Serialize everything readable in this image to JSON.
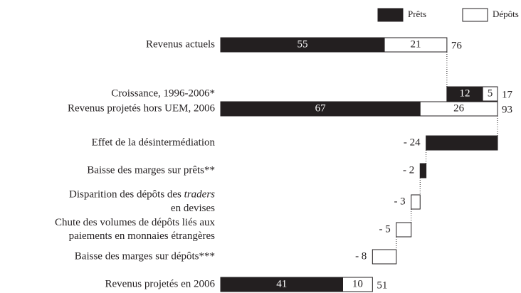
{
  "chart_data": {
    "type": "waterfall",
    "categories": [
      [
        "Revenus actuels"
      ],
      [
        "Croissance, 1996-2006*"
      ],
      [
        "Revenus projetés hors UEM, 2006"
      ],
      [
        "Effet de la désintermédiation"
      ],
      [
        "Baisse des marges sur prêts**"
      ],
      [
        [
          {
            "text": "Disparition des dépôts des "
          },
          {
            "text": "traders",
            "italic": true
          }
        ],
        "en devises"
      ],
      [
        "Chute des volumes de dépôts liés aux",
        "paiements en monnaies étrangères"
      ],
      [
        "Baisse des marges sur dépôts***"
      ],
      [
        "Revenus projetés en 2006"
      ]
    ],
    "measure": [
      "absolute",
      "relative",
      "absolute",
      "relative",
      "relative",
      "relative",
      "relative",
      "relative",
      "absolute"
    ],
    "series": [
      {
        "name": "Prêts",
        "color": "#231f20",
        "values": [
          55,
          12,
          67,
          -24,
          -2,
          null,
          null,
          null,
          41
        ],
        "value_labels": [
          "55",
          "12",
          "67",
          "- 24",
          "- 2",
          null,
          null,
          null,
          "41"
        ]
      },
      {
        "name": "Dépôts",
        "color": "#ffffff",
        "values": [
          21,
          5,
          26,
          null,
          null,
          -3,
          -5,
          -8,
          10
        ],
        "value_labels": [
          "21",
          "5",
          "26",
          null,
          null,
          "- 3",
          "- 5",
          "- 8",
          "10"
        ]
      }
    ],
    "totals": [
      76,
      17,
      93,
      null,
      null,
      null,
      null,
      null,
      51
    ]
  }
}
